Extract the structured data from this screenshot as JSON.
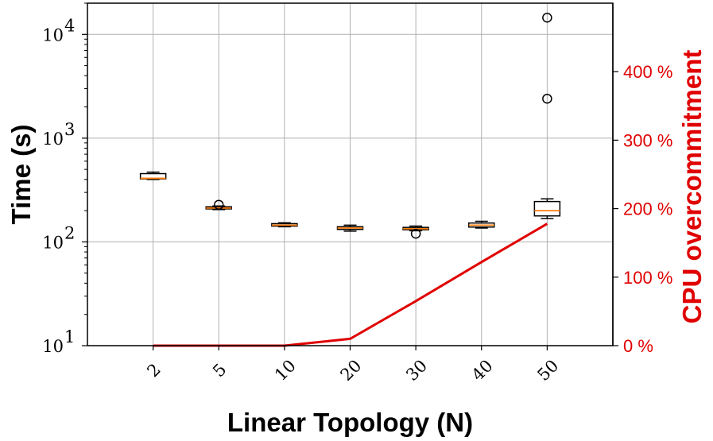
{
  "chart_data": {
    "type": "box",
    "xlabel": "Linear Topology (N)",
    "ylabel": "Time (s)",
    "y2label": "CPU overcommitment",
    "yscale": "log",
    "ylim": [
      10,
      20000
    ],
    "y2lim": [
      0,
      500
    ],
    "grid": true,
    "categories": [
      "2",
      "5",
      "10",
      "20",
      "30",
      "40",
      "50"
    ],
    "y_ticks": [
      {
        "base": "10",
        "exp": "1",
        "value": 10
      },
      {
        "base": "10",
        "exp": "2",
        "value": 100
      },
      {
        "base": "10",
        "exp": "3",
        "value": 1000
      },
      {
        "base": "10",
        "exp": "4",
        "value": 10000
      }
    ],
    "y2_ticks": [
      {
        "label": "0 %",
        "value": 0
      },
      {
        "label": "100 %",
        "value": 100
      },
      {
        "label": "200 %",
        "value": 200
      },
      {
        "label": "300 %",
        "value": 300
      },
      {
        "label": "400 %",
        "value": 400
      }
    ],
    "boxes": [
      {
        "category": "2",
        "whislo": 400,
        "q1": 405,
        "med": 410,
        "q3": 455,
        "whishi": 470,
        "fliers": []
      },
      {
        "category": "5",
        "whislo": 205,
        "q1": 208,
        "med": 212,
        "q3": 218,
        "whishi": 222,
        "fliers": [
          228
        ]
      },
      {
        "category": "10",
        "whislo": 140,
        "q1": 142,
        "med": 145,
        "q3": 150,
        "whishi": 153,
        "fliers": []
      },
      {
        "category": "20",
        "whislo": 127,
        "q1": 132,
        "med": 136,
        "q3": 140,
        "whishi": 145,
        "fliers": []
      },
      {
        "category": "30",
        "whislo": 128,
        "q1": 131,
        "med": 134,
        "q3": 138,
        "whishi": 142,
        "fliers": [
          120
        ]
      },
      {
        "category": "40",
        "whislo": 136,
        "q1": 139,
        "med": 145,
        "q3": 152,
        "whishi": 158,
        "fliers": []
      },
      {
        "category": "50",
        "whislo": 168,
        "q1": 178,
        "med": 200,
        "q3": 245,
        "whishi": 260,
        "fliers": [
          2400,
          14500
        ]
      }
    ],
    "overcommit_series": {
      "color": "#e00000",
      "values": [
        0,
        0,
        0,
        10,
        65,
        122,
        178
      ]
    },
    "colors": {
      "box": "#000000",
      "median": "#ff7f0e",
      "grid": "#b0b0b0",
      "right_axis": "#e00000"
    }
  }
}
